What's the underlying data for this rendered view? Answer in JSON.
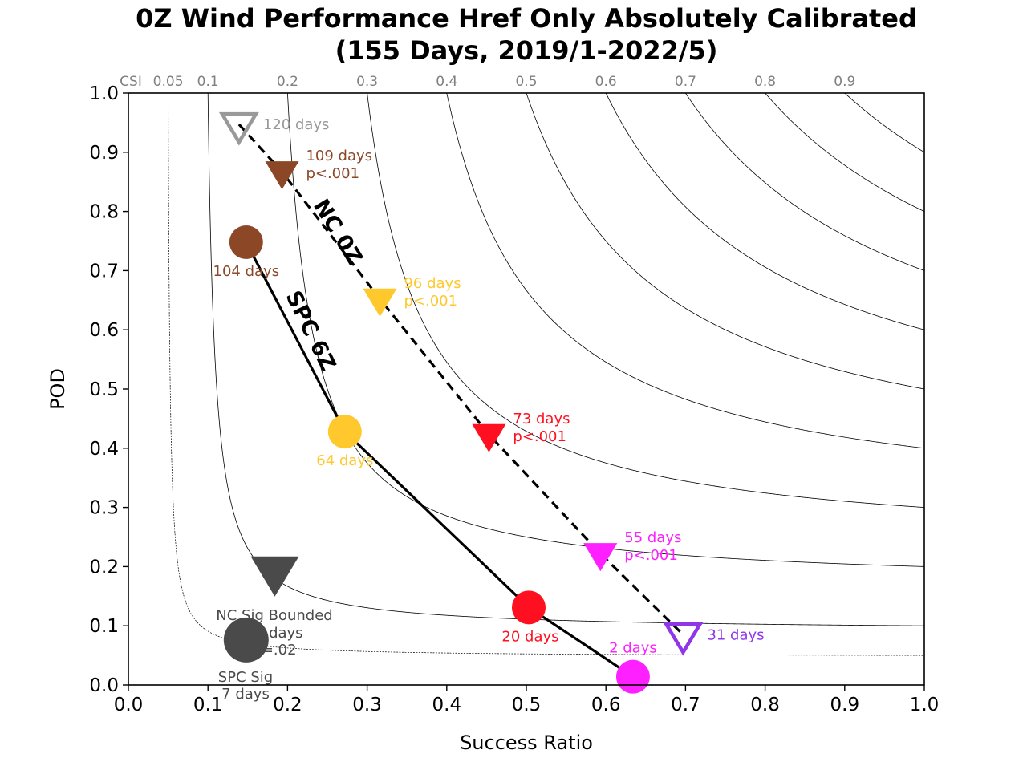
{
  "chart_data": {
    "type": "scatter",
    "title": [
      "0Z Wind Performance Href Only Absolutely Calibrated",
      "(155 Days, 2019/1-2022/5)"
    ],
    "xlabel": "Success Ratio",
    "ylabel": "POD",
    "xlim": [
      0,
      1
    ],
    "ylim": [
      0,
      1
    ],
    "x_ticks": [
      "0.0",
      "0.1",
      "0.2",
      "0.3",
      "0.4",
      "0.5",
      "0.6",
      "0.7",
      "0.8",
      "0.9",
      "1.0"
    ],
    "y_ticks": [
      "0.0",
      "0.1",
      "0.2",
      "0.3",
      "0.4",
      "0.5",
      "0.6",
      "0.7",
      "0.8",
      "0.9",
      "1.0"
    ],
    "csi_contours": {
      "label": "CSI",
      "levels": [
        0.05,
        0.1,
        0.2,
        0.3,
        0.4,
        0.5,
        0.6,
        0.7,
        0.8,
        0.9
      ],
      "level_labels": [
        "0.05",
        "0.1",
        "0.2",
        "0.3",
        "0.4",
        "0.5",
        "0.6",
        "0.7",
        "0.8",
        "0.9"
      ]
    },
    "series": [
      {
        "name": "SPC 6Z",
        "marker": "circle",
        "line_style": "solid",
        "points": [
          {
            "sr": 0.148,
            "pod": 0.748,
            "color": "#8B4726",
            "label": "104 days"
          },
          {
            "sr": 0.272,
            "pod": 0.428,
            "color": "#FFC82D",
            "label": "64 days"
          },
          {
            "sr": 0.503,
            "pod": 0.131,
            "color": "#FF1020",
            "label": "20 days"
          },
          {
            "sr": 0.634,
            "pod": 0.014,
            "color": "#FF20FF",
            "label": "2 days"
          }
        ]
      },
      {
        "name": "NC 0Z",
        "marker": "triangle-down",
        "line_style": "dashed",
        "points": [
          {
            "sr": 0.139,
            "pod": 0.947,
            "color": "#999999",
            "hollow": true,
            "label": "120 days"
          },
          {
            "sr": 0.193,
            "pod": 0.867,
            "color": "#8B4726",
            "label": "109 days",
            "label2": "p<.001"
          },
          {
            "sr": 0.316,
            "pod": 0.652,
            "color": "#FFC82D",
            "label": "96 days",
            "label2": "p<.001"
          },
          {
            "sr": 0.453,
            "pod": 0.423,
            "color": "#FF1020",
            "label": "73 days",
            "label2": "p<.001"
          },
          {
            "sr": 0.593,
            "pod": 0.222,
            "color": "#FF20FF",
            "label": "55 days",
            "label2": "p<.001"
          },
          {
            "sr": 0.697,
            "pod": 0.085,
            "color": "#8F36E8",
            "hollow": true,
            "label": "31 days"
          }
        ]
      }
    ],
    "sig_points": [
      {
        "name": "SPC Sig",
        "marker": "circle",
        "sr": 0.148,
        "pod": 0.076,
        "color": "#4A4A4A",
        "label": "7 days"
      },
      {
        "name": "NC Sig Bounded",
        "marker": "triangle-down",
        "sr": 0.184,
        "pod": 0.192,
        "color": "#4A4A4A",
        "label": "31 days",
        "label2": "p=.02"
      }
    ]
  }
}
